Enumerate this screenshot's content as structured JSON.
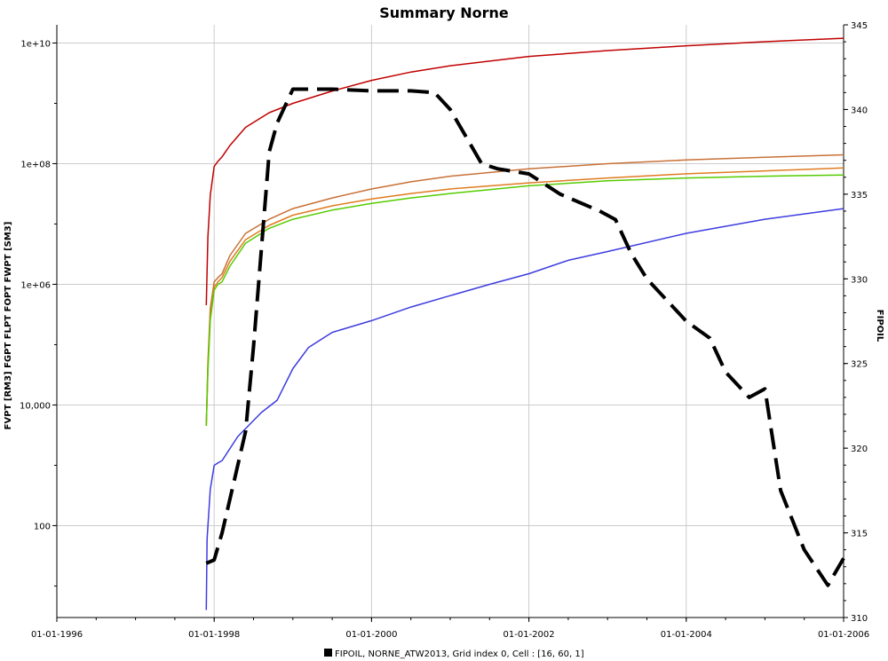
{
  "chart_data": {
    "type": "line",
    "title": "Summary Norne",
    "ylabel": "FVPT [RM3] FGPT FLPT FOPT FWPT [SM3]",
    "y2label": "FIPOIL",
    "x_ticks": [
      "01-01-1996",
      "01-01-1998",
      "01-01-2000",
      "01-01-2002",
      "01-01-2004",
      "01-01-2006"
    ],
    "xlim": [
      1996.0,
      2006.0
    ],
    "y_scale": "log",
    "ylim": [
      3,
      20000000000
    ],
    "y_ticks": [
      "100",
      "10,000",
      "1e+06",
      "1e+08",
      "1e+10"
    ],
    "y2lim": [
      310,
      345
    ],
    "y2_ticks": [
      "310",
      "315",
      "320",
      "325",
      "330",
      "335",
      "340",
      "345"
    ],
    "grid": true,
    "legend": {
      "position": "bottom",
      "entries": [
        "FIPOIL, NORNE_ATW2013, Grid index 0, Cell : [16, 60, 1]"
      ]
    },
    "series": [
      {
        "color": "#c00000",
        "axis": "left",
        "x": [
          1997.9,
          1997.92,
          1997.95,
          1998.0,
          1998.05,
          1998.1,
          1998.2,
          1998.4,
          1998.7,
          1999.0,
          1999.5,
          2000.0,
          2000.5,
          2001.0,
          2002.0,
          2003.0,
          2004.0,
          2005.0,
          2006.0
        ],
        "y": [
          450000,
          6000000,
          30000000,
          90000000,
          110000000,
          130000000,
          200000000,
          400000000,
          700000000,
          1000000000,
          1600000000,
          2400000000,
          3300000000,
          4200000000,
          6000000000,
          7500000000,
          9000000000,
          10500000000,
          12000000000
        ]
      },
      {
        "color": "#c87137",
        "axis": "left",
        "x": [
          1997.9,
          1997.92,
          1997.95,
          1998.0,
          1998.05,
          1998.1,
          1998.2,
          1998.4,
          1998.7,
          1999.0,
          1999.5,
          2000.0,
          2000.5,
          2001.0,
          2002.0,
          2003.0,
          2004.0,
          2005.0,
          2006.0
        ],
        "y": [
          4500,
          50000,
          400000,
          1100000,
          1300000,
          1500000,
          3000000,
          7000000,
          12000000,
          18000000,
          27000000,
          38000000,
          50000000,
          62000000,
          82000000,
          100000000,
          115000000,
          128000000,
          140000000
        ]
      },
      {
        "color": "#e07b20",
        "axis": "left",
        "x": [
          1997.9,
          1997.92,
          1997.95,
          1998.0,
          1998.05,
          1998.1,
          1998.2,
          1998.4,
          1998.7,
          1999.0,
          1999.5,
          2000.0,
          2000.5,
          2001.0,
          2002.0,
          2003.0,
          2004.0,
          2005.0,
          2006.0
        ],
        "y": [
          4500,
          40000,
          300000,
          900000,
          1100000,
          1300000,
          2400000,
          5500000,
          9500000,
          14000000,
          20000000,
          26000000,
          32000000,
          38000000,
          48000000,
          58000000,
          68000000,
          76000000,
          85000000
        ]
      },
      {
        "color": "#55cc00",
        "axis": "left",
        "x": [
          1997.9,
          1997.92,
          1997.95,
          1998.0,
          1998.05,
          1998.1,
          1998.2,
          1998.4,
          1998.7,
          1999.0,
          1999.5,
          2000.0,
          2000.5,
          2001.0,
          2002.0,
          2003.0,
          2004.0,
          2005.0,
          2006.0
        ],
        "y": [
          4500,
          35000,
          250000,
          800000,
          1000000,
          1100000,
          2000000,
          4800000,
          8500000,
          12000000,
          17000000,
          22000000,
          27000000,
          32000000,
          43000000,
          52000000,
          58000000,
          62000000,
          65000000
        ]
      },
      {
        "color": "#3c3ce0",
        "axis": "left",
        "x": [
          1997.9,
          1997.91,
          1997.95,
          1998.0,
          1998.05,
          1998.1,
          1998.3,
          1998.6,
          1998.8,
          1999.0,
          1999.2,
          1999.5,
          2000.0,
          2000.5,
          2001.0,
          2001.5,
          2002.0,
          2002.5,
          2003.0,
          2004.0,
          2005.0,
          2006.0
        ],
        "y": [
          4,
          60,
          400,
          1000,
          1100,
          1200,
          3000,
          7500,
          12000,
          40000,
          90000,
          160000,
          250000,
          420000,
          650000,
          1000000,
          1500000,
          2500000,
          3500000,
          7000000,
          12000000,
          18000000
        ]
      },
      {
        "name": "FIPOIL, NORNE_ATW2013, Grid index 0, Cell : [16, 60, 1]",
        "color": "#000000",
        "axis": "right",
        "dashed": true,
        "x": [
          1997.9,
          1998.0,
          1998.1,
          1998.25,
          1998.4,
          1998.5,
          1998.7,
          1998.8,
          1999.0,
          1999.1,
          1999.5,
          2000.0,
          2000.5,
          2000.8,
          2001.0,
          2001.4,
          2001.6,
          2002.0,
          2002.4,
          2002.9,
          2003.1,
          2003.3,
          2003.5,
          2004.0,
          2004.3,
          2004.5,
          2004.8,
          2005.0,
          2005.2,
          2005.5,
          2005.8,
          2006.0
        ],
        "y": [
          313.2,
          313.4,
          315.0,
          318.0,
          321.0,
          326.0,
          337.5,
          339.2,
          341.2,
          341.2,
          341.2,
          341.1,
          341.1,
          341.0,
          340.0,
          336.8,
          336.5,
          336.2,
          335.0,
          334.0,
          333.5,
          331.5,
          330.0,
          327.5,
          326.5,
          324.5,
          323.0,
          323.5,
          317.5,
          314.0,
          311.9,
          313.5
        ]
      }
    ]
  }
}
